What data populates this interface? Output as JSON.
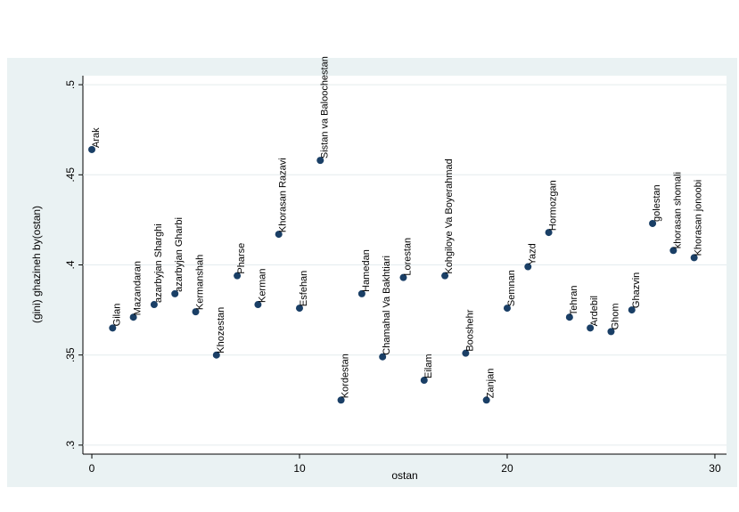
{
  "chart_data": {
    "type": "scatter",
    "xlabel": "ostan",
    "ylabel": "(gini) ghazineh by(ostan)",
    "x": [
      0,
      1,
      2,
      3,
      4,
      5,
      6,
      7,
      8,
      9,
      10,
      11,
      12,
      13,
      14,
      15,
      16,
      17,
      18,
      19,
      20,
      21,
      22,
      23,
      24,
      25,
      26,
      27,
      28,
      29
    ],
    "values": [
      0.464,
      0.365,
      0.371,
      0.378,
      0.384,
      0.374,
      0.35,
      0.394,
      0.378,
      0.417,
      0.376,
      0.458,
      0.325,
      0.384,
      0.349,
      0.393,
      0.336,
      0.394,
      0.351,
      0.325,
      0.376,
      0.399,
      0.418,
      0.371,
      0.365,
      0.363,
      0.375,
      0.423,
      0.408,
      0.404
    ],
    "labels": [
      "Arak",
      "Gilan",
      "Mazandaran",
      "azarbyjan Sharghi",
      "azarbyjan Gharbi",
      "Kermanshah",
      "Khozestan",
      "Pharse",
      "Kerman",
      "Khorasan Razavi",
      "Esfehan",
      "Sistan va Baloochestan",
      "Kordestan",
      "Hamedan",
      "Chamahal Va Bakhtiari",
      "Lorestan",
      "Eilam",
      "Kohgiloye Va Boyerahmad",
      "Booshehr",
      "Zanjan",
      "Semnan",
      "Yazd",
      "Hormozgan",
      "Tehran",
      "Ardebil",
      "Ghom",
      "Ghazvin",
      "golestan",
      "khorasan shomali",
      "Khorasan jonoobi"
    ],
    "color": "#1a3f66",
    "xlim": [
      -0.43,
      30.56
    ],
    "ylim": [
      0.295,
      0.505
    ],
    "xticks": [
      0,
      10,
      20,
      30
    ],
    "yticks": [
      {
        "value": 0.3,
        "label": ".3"
      },
      {
        "value": 0.35,
        "label": ".35"
      },
      {
        "value": 0.4,
        "label": ".4"
      },
      {
        "value": 0.45,
        "label": ".45"
      },
      {
        "value": 0.5,
        "label": ".5"
      }
    ],
    "grid": true
  }
}
